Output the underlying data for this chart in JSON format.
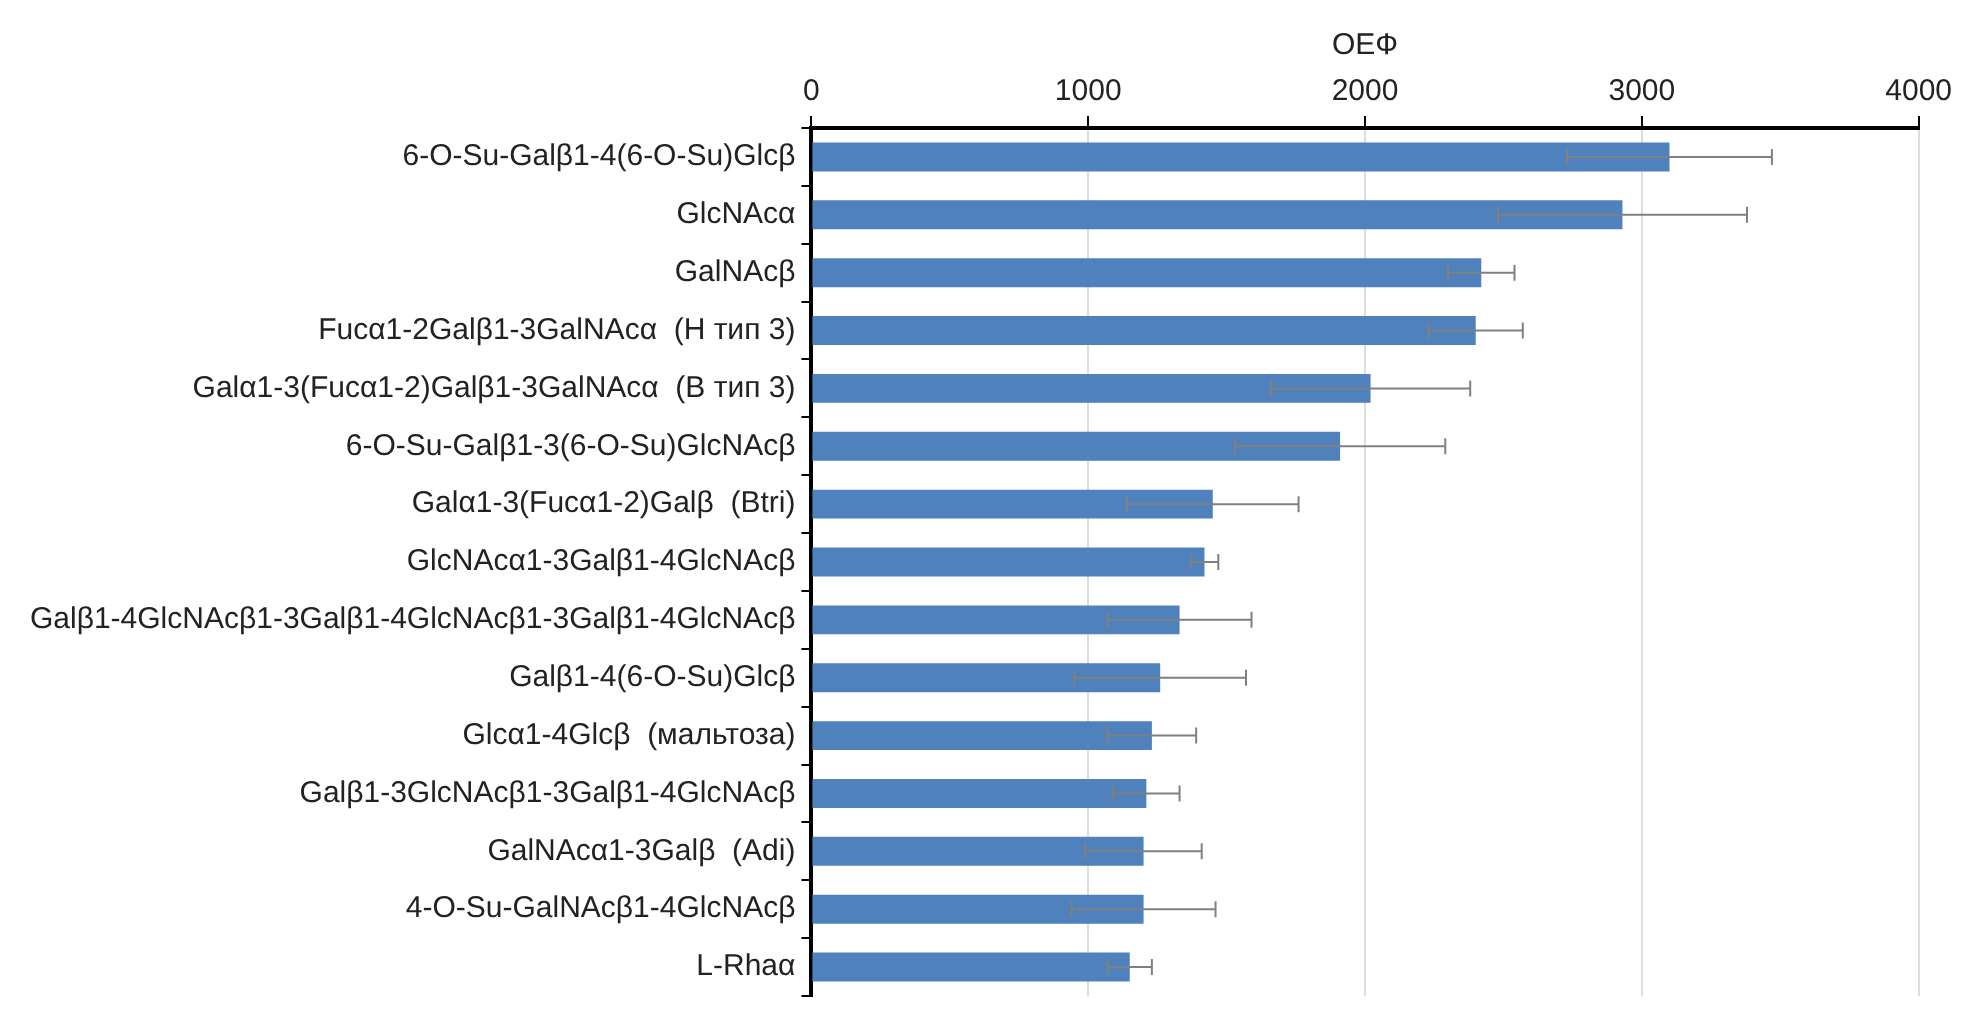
{
  "chart_data": {
    "type": "bar",
    "orientation": "horizontal",
    "xlabel": "ОЕФ",
    "categories": [
      "6-O-Su-Galβ1-4(6-O-Su)Glcβ",
      "GlcNAcα",
      "GalNAcβ",
      "Fucα1-2Galβ1-3GalNAcα  (H тип 3)",
      "Galα1-3(Fucα1-2)Galβ1-3GalNAcα  (B тип 3)",
      "6-O-Su-Galβ1-3(6-O-Su)GlcNAcβ",
      "Galα1-3(Fucα1-2)Galβ  (Btri)",
      "GlcNAcα1-3Galβ1-4GlcNAcβ",
      "Galβ1-4GlcNAcβ1-3Galβ1-4GlcNAcβ1-3Galβ1-4GlcNAcβ",
      "Galβ1-4(6-O-Su)Glcβ",
      "Glcα1-4Glcβ  (мальтоза)",
      "Galβ1-3GlcNAcβ1-3Galβ1-4GlcNAcβ",
      "GalNAcα1-3Galβ  (Adi)",
      "4-O-Su-GalNAcβ1-4GlcNAcβ",
      "L-Rhaα"
    ],
    "values": [
      3100,
      2930,
      2420,
      2400,
      2020,
      1910,
      1450,
      1420,
      1330,
      1260,
      1230,
      1210,
      1200,
      1200,
      1150
    ],
    "errors": [
      370,
      450,
      120,
      170,
      360,
      380,
      310,
      50,
      260,
      310,
      160,
      120,
      210,
      260,
      80
    ],
    "color": "#4f81bd",
    "xlim": [
      0,
      4000
    ],
    "xticks": [
      0,
      1000,
      2000,
      3000,
      4000
    ],
    "grid": "x",
    "legend": false
  }
}
